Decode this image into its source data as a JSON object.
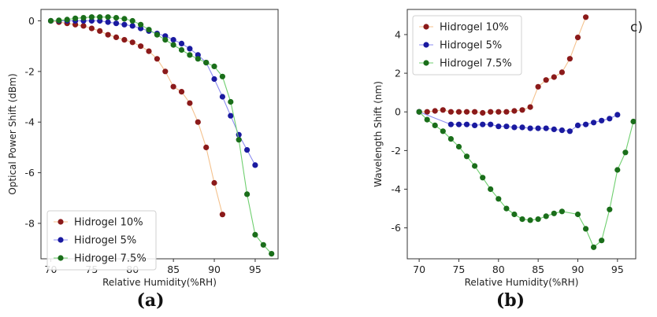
{
  "chart_data": [
    {
      "type": "line",
      "panel_label": "(a)",
      "xlabel": "Relative Humidity(%RH)",
      "ylabel": "Optical Power Shift (dBm)",
      "xlim": [
        68.8,
        97.8
      ],
      "ylim": [
        -9.4,
        0.45
      ],
      "xticks": [
        70,
        75,
        80,
        85,
        90,
        95
      ],
      "yticks": [
        0,
        -2,
        -4,
        -6,
        -8
      ],
      "legend_position": "lower-left",
      "series": [
        {
          "name": "Hidrogel 10%",
          "color": "#8b1a1a",
          "line_color": "#f4c28e",
          "x": [
            70,
            71,
            72,
            73,
            74,
            75,
            76,
            77,
            78,
            79,
            80,
            81,
            82,
            83,
            84,
            85,
            86,
            87,
            88,
            89,
            90,
            91
          ],
          "y": [
            0,
            -0.05,
            -0.1,
            -0.15,
            -0.2,
            -0.3,
            -0.4,
            -0.55,
            -0.65,
            -0.75,
            -0.85,
            -1.0,
            -1.2,
            -1.5,
            -2.0,
            -2.6,
            -2.8,
            -3.25,
            -4.0,
            -5.0,
            -6.4,
            -7.65
          ]
        },
        {
          "name": "Hidrogel 5%",
          "color": "#1a1aa0",
          "line_color": "#8c8cf0",
          "x": [
            70,
            71,
            72,
            73,
            74,
            75,
            76,
            77,
            78,
            79,
            80,
            81,
            82,
            83,
            84,
            85,
            86,
            87,
            88,
            89,
            90,
            91,
            92,
            93,
            94,
            95
          ],
          "y": [
            0,
            0,
            0,
            0,
            0,
            0,
            0,
            -0.05,
            -0.1,
            -0.15,
            -0.2,
            -0.3,
            -0.4,
            -0.5,
            -0.6,
            -0.75,
            -0.9,
            -1.1,
            -1.35,
            -1.65,
            -2.3,
            -3.0,
            -3.75,
            -4.5,
            -5.1,
            -5.7
          ]
        },
        {
          "name": "Hidrogel 7.5%",
          "color": "#1a6e1a",
          "line_color": "#6fcf6f",
          "x": [
            70,
            71,
            72,
            73,
            74,
            75,
            76,
            77,
            78,
            79,
            80,
            81,
            82,
            83,
            84,
            85,
            86,
            87,
            88,
            89,
            90,
            91,
            92,
            93,
            94,
            95,
            96,
            97
          ],
          "y": [
            0,
            0.02,
            0.05,
            0.1,
            0.12,
            0.15,
            0.15,
            0.15,
            0.12,
            0.08,
            0,
            -0.15,
            -0.35,
            -0.55,
            -0.75,
            -0.95,
            -1.15,
            -1.35,
            -1.5,
            -1.65,
            -1.8,
            -2.2,
            -3.2,
            -4.7,
            -6.85,
            -8.45,
            -8.85,
            -9.2
          ]
        }
      ]
    },
    {
      "type": "line",
      "panel_label": "(b)",
      "corner_label": "c)",
      "xlabel": "Relative Humidity(%RH)",
      "ylabel": "Wavelength Shift (nm)",
      "xlim": [
        68.5,
        97.3
      ],
      "ylim": [
        -7.6,
        5.3
      ],
      "xticks": [
        70,
        75,
        80,
        85,
        90,
        95
      ],
      "yticks": [
        4,
        2,
        0,
        -2,
        -4,
        -6
      ],
      "legend_position": "upper-left",
      "series": [
        {
          "name": "Hidrogel 10%",
          "color": "#8b1a1a",
          "line_color": "#f4c28e",
          "x": [
            70,
            71,
            72,
            73,
            74,
            75,
            76,
            77,
            78,
            79,
            80,
            81,
            82,
            83,
            84,
            85,
            86,
            87,
            88,
            89,
            90,
            91
          ],
          "y": [
            0,
            0,
            0.05,
            0.1,
            0,
            0,
            0,
            0,
            -0.05,
            0,
            0,
            0,
            0.05,
            0.1,
            0.25,
            1.3,
            1.65,
            1.8,
            2.05,
            2.75,
            3.85,
            4.9
          ]
        },
        {
          "name": "Hidrogel 5%",
          "color": "#1a1aa0",
          "line_color": "#8c8cf0",
          "x": [
            70,
            74,
            75,
            76,
            77,
            78,
            79,
            80,
            81,
            82,
            83,
            84,
            85,
            86,
            87,
            88,
            89,
            90,
            91,
            92,
            93,
            94,
            95
          ],
          "y": [
            0,
            -0.65,
            -0.65,
            -0.65,
            -0.7,
            -0.65,
            -0.65,
            -0.75,
            -0.75,
            -0.8,
            -0.8,
            -0.85,
            -0.85,
            -0.85,
            -0.9,
            -0.95,
            -1.0,
            -0.7,
            -0.65,
            -0.55,
            -0.45,
            -0.35,
            -0.15
          ]
        },
        {
          "name": "Hidrogel 7.5%",
          "color": "#1a6e1a",
          "line_color": "#6fcf6f",
          "x": [
            70,
            71,
            72,
            73,
            74,
            75,
            76,
            77,
            78,
            79,
            80,
            81,
            82,
            83,
            84,
            85,
            86,
            87,
            88,
            90,
            91,
            92,
            93,
            94,
            95,
            96,
            97
          ],
          "y": [
            0,
            -0.4,
            -0.7,
            -1.0,
            -1.4,
            -1.8,
            -2.3,
            -2.8,
            -3.4,
            -4.0,
            -4.5,
            -5.0,
            -5.3,
            -5.55,
            -5.6,
            -5.55,
            -5.4,
            -5.25,
            -5.15,
            -5.3,
            -6.05,
            -7.0,
            -6.65,
            -5.05,
            -3.0,
            -2.1,
            -0.5
          ]
        }
      ]
    }
  ]
}
